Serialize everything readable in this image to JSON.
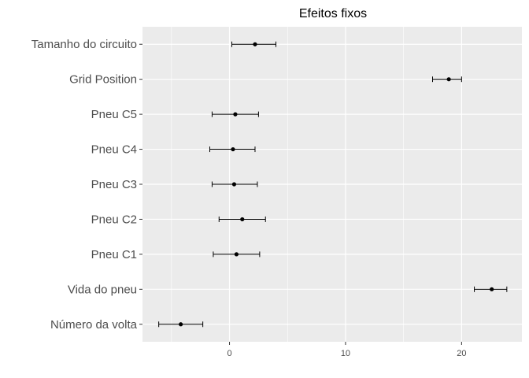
{
  "chart_data": {
    "type": "scatter",
    "subtype": "point-range (coefficient plot)",
    "title": "Efeitos fixos",
    "xlabel": "",
    "ylabel": "",
    "xlim": [
      -7.5,
      25.2
    ],
    "xticks": [
      0,
      10,
      20
    ],
    "xtick_labels": [
      "0",
      "10",
      "20"
    ],
    "grid": true,
    "background": "#ebebeb",
    "grid_color": "#ffffff",
    "point_color": "#000000",
    "categories": [
      "Tamanho do circuito",
      "Grid Position",
      "Pneu C5",
      "Pneu C4",
      "Pneu C3",
      "Pneu C2",
      "Pneu C1",
      "Vida do pneu",
      "Número da volta"
    ],
    "series": [
      {
        "values": [
          2.2,
          18.9,
          0.5,
          0.3,
          0.4,
          1.1,
          0.6,
          22.6,
          -4.2
        ],
        "lower": [
          0.2,
          17.5,
          -1.5,
          -1.7,
          -1.5,
          -0.9,
          -1.4,
          21.1,
          -6.1
        ],
        "upper": [
          4.0,
          20.0,
          2.5,
          2.2,
          2.4,
          3.1,
          2.6,
          23.9,
          -2.3
        ]
      }
    ]
  }
}
